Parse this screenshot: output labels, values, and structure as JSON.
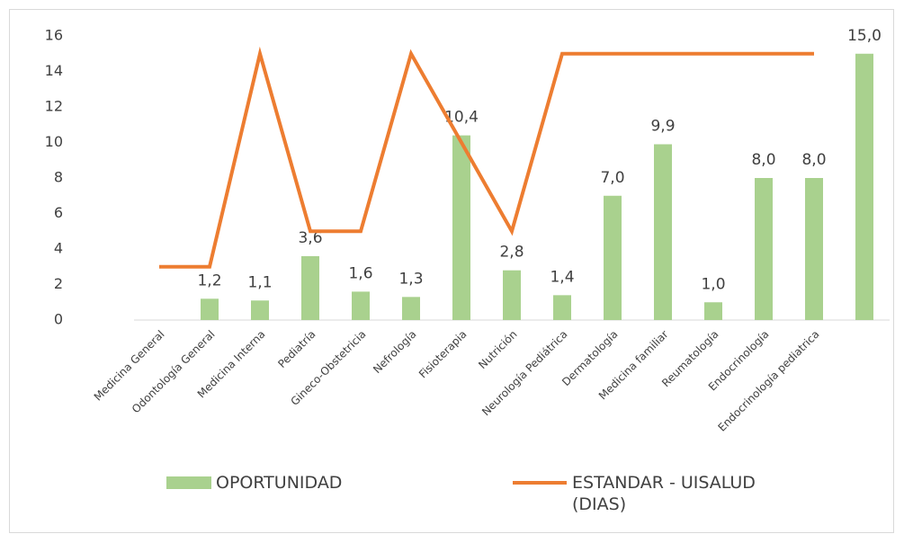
{
  "chart_data": {
    "type": "bar-line",
    "categories": [
      "Medicina General",
      "Odontología General",
      "Medicina Interna",
      "Pediatría",
      "Gineco-Obstetricia",
      "Nefrología",
      "Fisioterapia",
      "Nutrición",
      "Neurología Pediátrica",
      "Dermatología",
      "Medicina familiar",
      "Reumatología",
      "Endocrinología",
      "Endocrinología pediatrica",
      null
    ],
    "series": [
      {
        "name": "OPORTUNIDAD",
        "type": "bar",
        "color": "#a9d18e",
        "values": [
          null,
          1.2,
          1.1,
          3.6,
          1.6,
          1.3,
          10.4,
          2.8,
          1.4,
          7.0,
          9.9,
          1.0,
          8.0,
          8.0,
          15.0
        ],
        "value_labels": [
          null,
          "1,2",
          "1,1",
          "3,6",
          "1,6",
          "1,3",
          "10,4",
          "2,8",
          "1,4",
          "7,0",
          "9,9",
          "1,0",
          "8,0",
          "8,0",
          "15,0"
        ]
      },
      {
        "name": "ESTANDAR - UISALUD (DIAS)",
        "type": "line",
        "color": "#ed7d31",
        "values": [
          3,
          3,
          15,
          5,
          5,
          15,
          10,
          5,
          15,
          15,
          15,
          15,
          15,
          15,
          null
        ]
      }
    ],
    "ylim": [
      0,
      16
    ],
    "yticks": [
      0,
      2,
      4,
      6,
      8,
      10,
      12,
      14,
      16
    ],
    "grid": false,
    "legend": "bottom"
  }
}
